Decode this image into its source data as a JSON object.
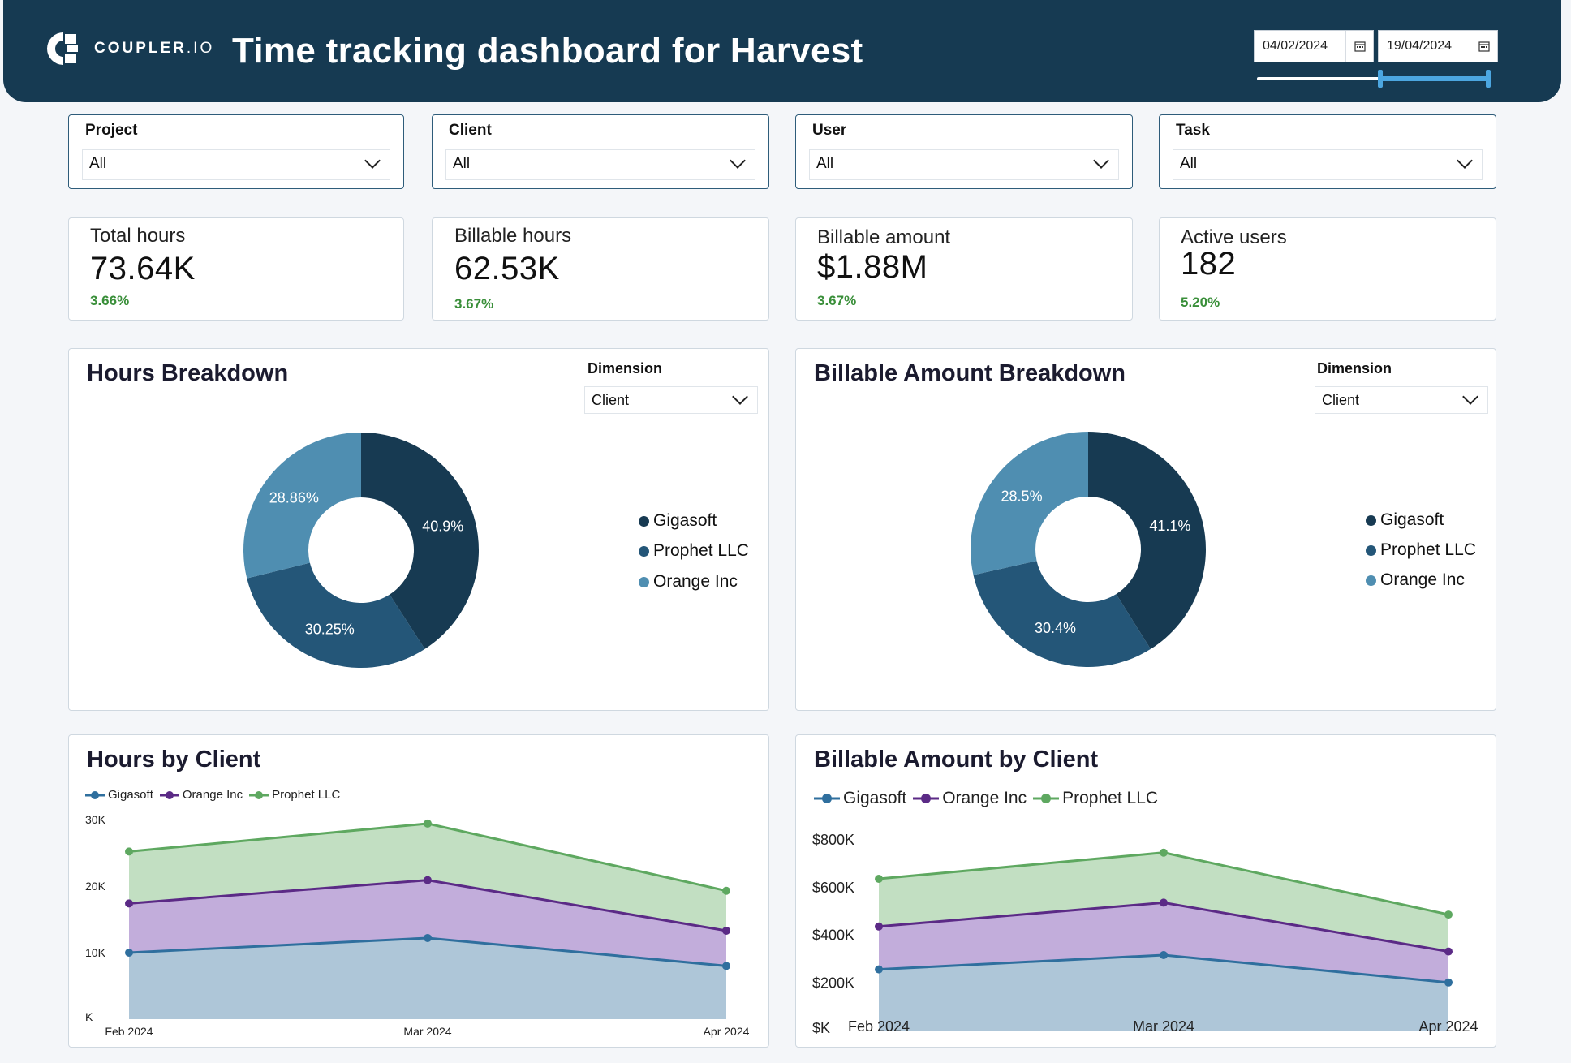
{
  "header": {
    "logo_text": "COUPLER",
    "logo_suffix": ".IO",
    "title": "Time tracking dashboard for Harvest",
    "date_from": "04/02/2024",
    "date_to": "19/04/2024",
    "calendar_icon": "calendar-icon",
    "date_slider": {
      "start_fraction": 0.53,
      "end_fraction": 1.0
    }
  },
  "filters": [
    {
      "label": "Project",
      "value": "All"
    },
    {
      "label": "Client",
      "value": "All"
    },
    {
      "label": "User",
      "value": "All"
    },
    {
      "label": "Task",
      "value": "All"
    }
  ],
  "kpis": [
    {
      "label": "Total hours",
      "value": "73.64K",
      "change": "3.66%"
    },
    {
      "label": "Billable hours",
      "value": "62.53K",
      "change": "3.67%"
    },
    {
      "label": "Billable amount",
      "value": "$1.88M",
      "change": "3.67%"
    },
    {
      "label": "Active users",
      "value": "182",
      "change": "5.20%"
    }
  ],
  "colors": {
    "header_bg": "#163a52",
    "gigasoft": "#173a52",
    "prophet": "#245678",
    "orange_inc": "#4f8eb1",
    "line_gigasoft": "#2f6f9e",
    "line_orange": "#5b2a86",
    "line_prophet": "#5ea860",
    "change_green": "#3a8f3a"
  },
  "hours_breakdown": {
    "title": "Hours Breakdown",
    "dimension_label": "Dimension",
    "dimension_value": "Client"
  },
  "billable_breakdown": {
    "title": "Billable Amount Breakdown",
    "dimension_label": "Dimension",
    "dimension_value": "Client"
  },
  "hours_by_client": {
    "title": "Hours by Client"
  },
  "billable_by_client": {
    "title": "Billable Amount by Client"
  },
  "chart_data": [
    {
      "type": "pie",
      "title": "Hours Breakdown",
      "categories": [
        "Gigasoft",
        "Prophet LLC",
        "Orange Inc"
      ],
      "values": [
        40.9,
        30.25,
        28.86
      ],
      "labels": [
        "40.9%",
        "30.25%",
        "28.86%"
      ],
      "legend": [
        "Gigasoft",
        "Prophet LLC",
        "Orange Inc"
      ]
    },
    {
      "type": "pie",
      "title": "Billable Amount Breakdown",
      "categories": [
        "Gigasoft",
        "Prophet LLC",
        "Orange Inc"
      ],
      "values": [
        41.1,
        30.4,
        28.5
      ],
      "labels": [
        "41.1%",
        "30.4%",
        "28.5%"
      ],
      "legend": [
        "Gigasoft",
        "Prophet LLC",
        "Orange Inc"
      ]
    },
    {
      "type": "area",
      "title": "Hours by Client",
      "categories": [
        "Feb 2024",
        "Mar 2024",
        "Apr 2024"
      ],
      "series": [
        {
          "name": "Gigasoft",
          "values": [
            10000,
            12200,
            8000
          ]
        },
        {
          "name": "Orange Inc",
          "values": [
            7400,
            8700,
            5300
          ]
        },
        {
          "name": "Prophet LLC",
          "values": [
            7800,
            8500,
            6000
          ]
        }
      ],
      "stacked": true,
      "yticks": [
        "K",
        "10K",
        "20K",
        "30K"
      ],
      "ylim": [
        0,
        30000
      ]
    },
    {
      "type": "area",
      "title": "Billable Amount by Client",
      "categories": [
        "Feb 2024",
        "Mar 2024",
        "Apr 2024"
      ],
      "series": [
        {
          "name": "Gigasoft",
          "values": [
            260000,
            320000,
            205000
          ]
        },
        {
          "name": "Orange Inc",
          "values": [
            180000,
            220000,
            130000
          ]
        },
        {
          "name": "Prophet LLC",
          "values": [
            200000,
            210000,
            155000
          ]
        }
      ],
      "stacked": true,
      "yticks": [
        "$K",
        "$200K",
        "$400K",
        "$600K",
        "$800K"
      ],
      "ylim": [
        0,
        800000
      ]
    }
  ]
}
